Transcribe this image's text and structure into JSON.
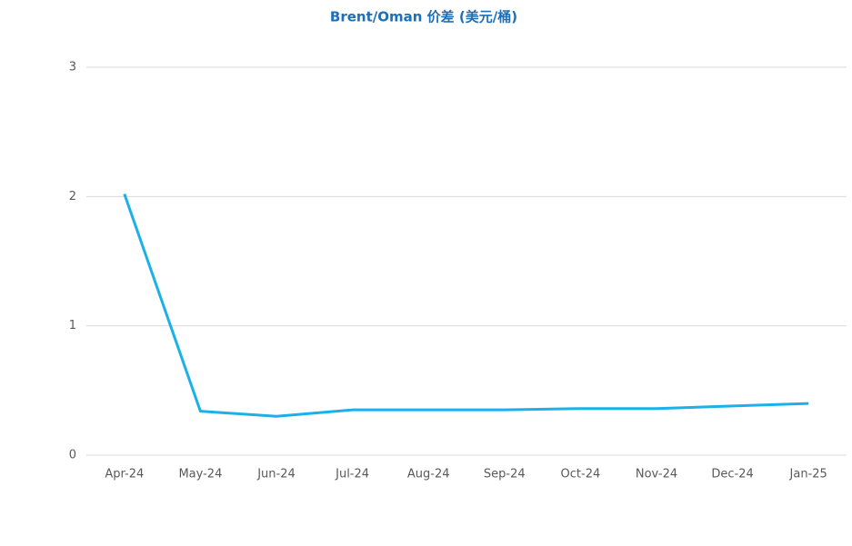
{
  "chart_data": {
    "type": "line",
    "title": "Brent/Oman 价差 (美元/桶)",
    "categories": [
      "Apr-24",
      "May-24",
      "Jun-24",
      "Jul-24",
      "Aug-24",
      "Sep-24",
      "Oct-24",
      "Nov-24",
      "Dec-24",
      "Jan-25"
    ],
    "values": [
      2.02,
      0.34,
      0.3,
      0.35,
      0.35,
      0.35,
      0.36,
      0.36,
      0.38,
      0.4
    ],
    "color": "#1ab0e8",
    "ylim": [
      0,
      3
    ],
    "yticks": [
      0,
      1,
      2,
      3
    ],
    "grid": true
  }
}
